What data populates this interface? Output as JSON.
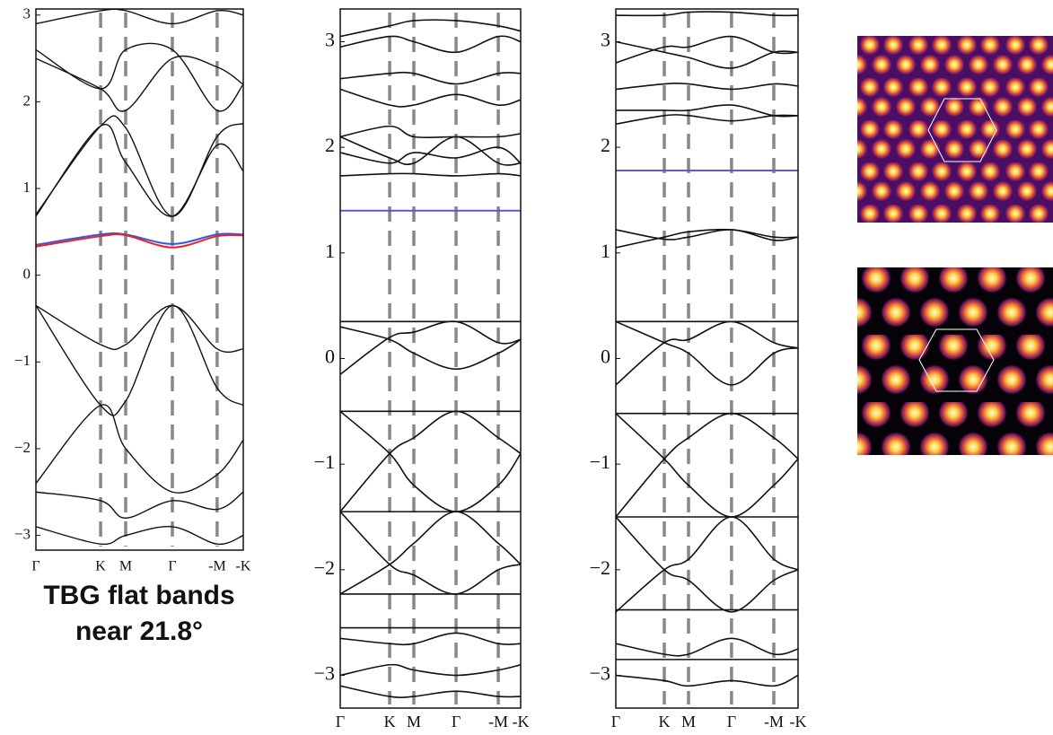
{
  "chart_data": [
    {
      "type": "line",
      "categories": [
        "Γ",
        "K",
        "M",
        "Γ",
        "-M",
        "-K"
      ],
      "ylim": [
        -3.17,
        3.07
      ],
      "yticks": [
        3,
        2,
        1,
        0,
        {
          "value": -1,
          "label": "−1"
        },
        {
          "value": -2,
          "label": "−2"
        },
        {
          "value": -3,
          "label": "−3"
        }
      ],
      "series": [
        {
          "color": "#3355ee",
          "values": [
            0.35,
            0.47,
            0.47,
            0.36,
            0.47,
            0.47
          ]
        },
        {
          "color": "#ee2222",
          "values": [
            0.33,
            0.45,
            0.46,
            0.32,
            0.45,
            0.46
          ]
        },
        {
          "color": "#111111",
          "values": [
            -0.35,
            -1.5,
            -1.45,
            -0.35,
            -1.3,
            -1.5
          ]
        },
        {
          "color": "#111111",
          "values": [
            -0.35,
            -0.8,
            -0.8,
            -0.35,
            -0.85,
            -0.85
          ]
        },
        {
          "color": "#111111",
          "values": [
            0.68,
            1.72,
            1.3,
            0.68,
            1.5,
            1.2
          ]
        },
        {
          "color": "#111111",
          "values": [
            0.7,
            1.72,
            1.7,
            0.68,
            1.6,
            1.75
          ]
        },
        {
          "color": "#111111",
          "values": [
            2.5,
            2.15,
            1.9,
            2.5,
            2.4,
            2.2
          ]
        },
        {
          "color": "#111111",
          "values": [
            2.6,
            2.15,
            2.6,
            2.6,
            1.9,
            2.2
          ]
        },
        {
          "color": "#111111",
          "values": [
            2.9,
            3.05,
            3.05,
            2.9,
            3.05,
            3.0
          ]
        },
        {
          "color": "#111111",
          "values": [
            -2.4,
            -1.5,
            -2.0,
            -2.5,
            -2.3,
            -1.9
          ]
        },
        {
          "color": "#111111",
          "values": [
            -2.5,
            -2.6,
            -2.8,
            -2.6,
            -2.7,
            -2.5
          ]
        },
        {
          "color": "#111111",
          "values": [
            -2.9,
            -3.1,
            -3.0,
            -2.9,
            -3.1,
            -3.0
          ]
        }
      ]
    },
    {
      "type": "line",
      "categories": [
        "Γ",
        "K",
        "M",
        "Γ",
        "-M",
        "-K"
      ],
      "ylim": [
        -3.31,
        3.31
      ],
      "yticks": [
        3,
        2,
        1,
        0,
        {
          "value": -1,
          "label": "−1"
        },
        {
          "value": -2,
          "label": "−2"
        },
        {
          "value": -3,
          "label": "−3"
        }
      ],
      "series": [
        {
          "color": "#5555dd",
          "values": [
            1.4,
            1.4,
            1.4,
            1.4,
            1.4,
            1.4
          ]
        },
        {
          "color": "#111111",
          "values": [
            0.35,
            0.35,
            0.35,
            0.35,
            0.35,
            0.35
          ]
        },
        {
          "color": "#111111",
          "values": [
            -0.15,
            0.2,
            0.25,
            0.35,
            0.15,
            0.18
          ]
        },
        {
          "color": "#111111",
          "values": [
            0.3,
            0.18,
            0.05,
            -0.1,
            0.05,
            0.18
          ]
        },
        {
          "color": "#111111",
          "values": [
            -0.5,
            -0.5,
            -0.5,
            -0.5,
            -0.5,
            -0.5
          ]
        },
        {
          "color": "#111111",
          "values": [
            -1.45,
            -0.9,
            -0.75,
            -0.5,
            -0.75,
            -0.9
          ]
        },
        {
          "color": "#111111",
          "values": [
            -0.5,
            -0.9,
            -1.2,
            -1.45,
            -1.2,
            -0.9
          ]
        },
        {
          "color": "#111111",
          "values": [
            -1.45,
            -1.45,
            -1.45,
            -1.45,
            -1.45,
            -1.45
          ]
        },
        {
          "color": "#111111",
          "values": [
            -1.45,
            -1.95,
            -2.05,
            -2.23,
            -2.0,
            -1.95
          ]
        },
        {
          "color": "#111111",
          "values": [
            -2.23,
            -1.95,
            -1.75,
            -1.45,
            -1.75,
            -1.95
          ]
        },
        {
          "color": "#111111",
          "values": [
            -2.23,
            -2.23,
            -2.23,
            -2.23,
            -2.23,
            -2.23
          ]
        },
        {
          "color": "#111111",
          "values": [
            1.73,
            1.75,
            1.75,
            1.73,
            1.75,
            1.73
          ]
        },
        {
          "color": "#111111",
          "values": [
            2.1,
            1.9,
            1.85,
            2.1,
            1.85,
            1.85
          ]
        },
        {
          "color": "#111111",
          "values": [
            1.95,
            1.85,
            1.95,
            1.9,
            2.0,
            1.85
          ]
        },
        {
          "color": "#111111",
          "values": [
            2.1,
            2.2,
            2.1,
            2.1,
            2.1,
            2.13
          ]
        },
        {
          "color": "#111111",
          "values": [
            2.55,
            2.4,
            2.4,
            2.5,
            2.4,
            2.45
          ]
        },
        {
          "color": "#111111",
          "values": [
            2.65,
            2.7,
            2.7,
            2.6,
            2.7,
            2.7
          ]
        },
        {
          "color": "#111111",
          "values": [
            2.95,
            3.05,
            3.0,
            2.9,
            3.05,
            3.0
          ]
        },
        {
          "color": "#111111",
          "values": [
            3.05,
            3.15,
            3.2,
            3.2,
            3.15,
            3.1
          ]
        },
        {
          "color": "#111111",
          "values": [
            -2.55,
            -2.55,
            -2.55,
            -2.55,
            -2.55,
            -2.55
          ]
        },
        {
          "color": "#111111",
          "values": [
            -2.65,
            -2.7,
            -2.7,
            -2.6,
            -2.7,
            -2.7
          ]
        },
        {
          "color": "#111111",
          "values": [
            -3.0,
            -2.9,
            -2.95,
            -3.0,
            -2.95,
            -2.9
          ]
        },
        {
          "color": "#111111",
          "values": [
            -3.1,
            -3.2,
            -3.2,
            -3.15,
            -3.2,
            -3.2
          ]
        }
      ]
    },
    {
      "type": "line",
      "categories": [
        "Γ",
        "K",
        "M",
        "Γ",
        "-M",
        "-K"
      ],
      "ylim": [
        -3.31,
        3.31
      ],
      "yticks": [
        3,
        2,
        1,
        0,
        {
          "value": -1,
          "label": "−1"
        },
        {
          "value": -2,
          "label": "−2"
        },
        {
          "value": -3,
          "label": "−3"
        }
      ],
      "series": [
        {
          "color": "#6655dd",
          "values": [
            1.78,
            1.78,
            1.78,
            1.78,
            1.78,
            1.78
          ]
        },
        {
          "color": "#111111",
          "values": [
            1.05,
            1.15,
            1.2,
            1.22,
            1.15,
            1.15
          ]
        },
        {
          "color": "#111111",
          "values": [
            1.22,
            1.13,
            1.15,
            1.22,
            1.12,
            1.15
          ]
        },
        {
          "color": "#111111",
          "values": [
            0.35,
            0.35,
            0.35,
            0.35,
            0.35,
            0.35
          ]
        },
        {
          "color": "#111111",
          "values": [
            -0.25,
            0.15,
            0.18,
            0.35,
            0.15,
            0.1
          ]
        },
        {
          "color": "#111111",
          "values": [
            0.35,
            0.15,
            0.05,
            -0.25,
            0.05,
            0.1
          ]
        },
        {
          "color": "#111111",
          "values": [
            -0.52,
            -0.52,
            -0.52,
            -0.52,
            -0.52,
            -0.52
          ]
        },
        {
          "color": "#111111",
          "values": [
            -0.52,
            -0.95,
            -1.2,
            -1.5,
            -1.2,
            -0.95
          ]
        },
        {
          "color": "#111111",
          "values": [
            -1.5,
            -0.95,
            -0.75,
            -0.52,
            -0.75,
            -0.95
          ]
        },
        {
          "color": "#111111",
          "values": [
            -1.5,
            -1.5,
            -1.5,
            -1.5,
            -1.5,
            -1.5
          ]
        },
        {
          "color": "#111111",
          "values": [
            -1.5,
            -2.0,
            -2.1,
            -2.4,
            -2.1,
            -2.0
          ]
        },
        {
          "color": "#111111",
          "values": [
            -2.4,
            -2.0,
            -1.9,
            -1.5,
            -1.9,
            -2.0
          ]
        },
        {
          "color": "#111111",
          "values": [
            -2.38,
            -2.38,
            -2.38,
            -2.38,
            -2.38,
            -2.38
          ]
        },
        {
          "color": "#111111",
          "values": [
            2.22,
            2.3,
            2.3,
            2.25,
            2.3,
            2.3
          ]
        },
        {
          "color": "#111111",
          "values": [
            2.35,
            2.35,
            2.35,
            2.4,
            2.3,
            2.3
          ]
        },
        {
          "color": "#111111",
          "values": [
            2.55,
            2.6,
            2.6,
            2.55,
            2.6,
            2.58
          ]
        },
        {
          "color": "#111111",
          "values": [
            2.8,
            2.95,
            2.95,
            3.05,
            2.9,
            2.9
          ]
        },
        {
          "color": "#111111",
          "values": [
            3.0,
            2.9,
            2.85,
            2.75,
            2.9,
            2.9
          ]
        },
        {
          "color": "#111111",
          "values": [
            3.25,
            3.25,
            3.28,
            3.28,
            3.25,
            3.25
          ]
        },
        {
          "color": "#111111",
          "values": [
            -2.7,
            -2.8,
            -2.8,
            -2.65,
            -2.8,
            -2.75
          ]
        },
        {
          "color": "#111111",
          "values": [
            -2.85,
            -2.85,
            -2.85,
            -2.85,
            -2.85,
            -2.85
          ]
        },
        {
          "color": "#111111",
          "values": [
            -3.0,
            -3.05,
            -3.1,
            -3.05,
            -3.1,
            -3.0
          ]
        }
      ]
    }
  ],
  "caption": [
    "TBG flat bands",
    "near 21.8°"
  ]
}
